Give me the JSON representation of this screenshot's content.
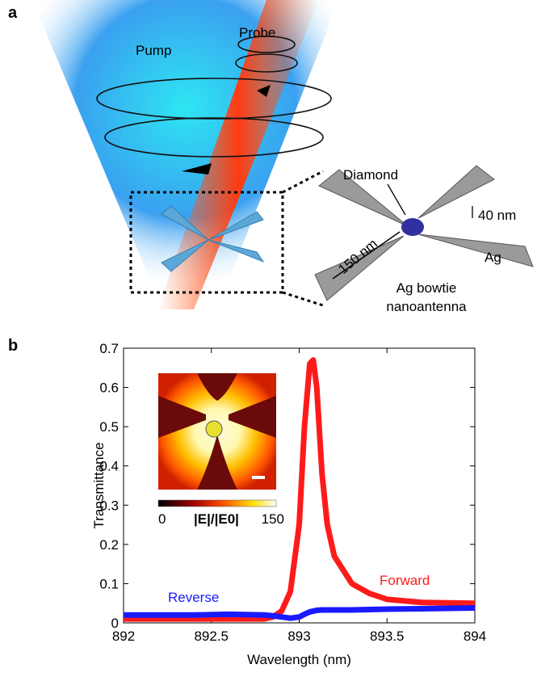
{
  "panel_a": {
    "label": "a",
    "pump": "Pump",
    "probe": "Probe",
    "diamond": "Diamond",
    "thickness": "40 nm",
    "length": "150 nm",
    "metal": "Ag",
    "antenna_lines": [
      "Ag bowtie",
      "nanoantenna"
    ]
  },
  "panel_b": {
    "label": "b"
  },
  "chart_data": {
    "type": "line",
    "xlabel": "Wavelength (nm)",
    "ylabel": "Transmittance",
    "x": [
      892,
      892.2,
      892.4,
      892.6,
      892.8,
      892.85,
      892.9,
      892.95,
      893.0,
      893.03,
      893.06,
      893.08,
      893.1,
      893.13,
      893.16,
      893.2,
      893.3,
      893.4,
      893.5,
      893.7,
      894
    ],
    "series": [
      {
        "name": "Forward",
        "color": "#ff1a1a",
        "values": [
          0.01,
          0.01,
          0.01,
          0.01,
          0.01,
          0.015,
          0.03,
          0.08,
          0.25,
          0.5,
          0.66,
          0.67,
          0.6,
          0.38,
          0.25,
          0.17,
          0.1,
          0.075,
          0.06,
          0.052,
          0.05
        ]
      },
      {
        "name": "Reverse",
        "color": "#1a1aff",
        "values": [
          0.02,
          0.02,
          0.02,
          0.022,
          0.02,
          0.018,
          0.015,
          0.012,
          0.015,
          0.022,
          0.028,
          0.03,
          0.032,
          0.033,
          0.033,
          0.033,
          0.033,
          0.034,
          0.035,
          0.036,
          0.038
        ]
      }
    ],
    "xlim": [
      892,
      894
    ],
    "xticks": [
      892,
      892.5,
      893,
      893.5,
      894
    ],
    "ylim": [
      0,
      0.7
    ],
    "yticks": [
      0,
      0.1,
      0.2,
      0.3,
      0.4,
      0.5,
      0.6,
      0.7
    ],
    "inset": {
      "colorbar_label": "|E|/|E0|",
      "colorbar_range": [
        0,
        150
      ]
    }
  }
}
